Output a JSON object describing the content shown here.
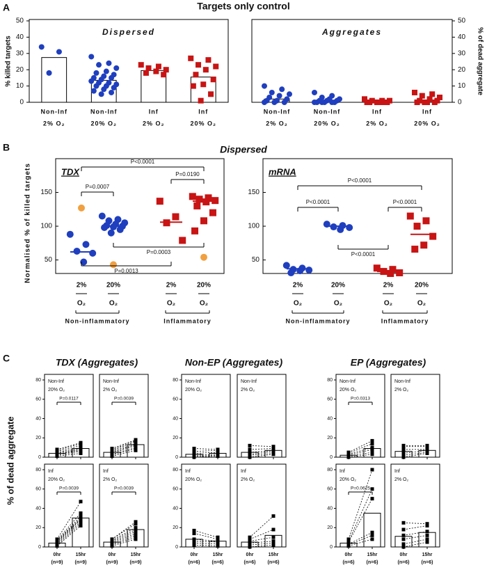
{
  "figure": {
    "panel_labels": [
      "A",
      "B",
      "C"
    ],
    "headings": {
      "a": "Targets only control",
      "b": "Dispersed",
      "c": [
        "TDX (Aggregates)",
        "Non-EP (Aggregates)",
        "EP (Aggregates)"
      ],
      "c_ylabel": "% of dead aggregate"
    }
  },
  "chart_data": [
    {
      "type": "bar_scatter",
      "title": "Dispersed",
      "ylabel": "% killed targets",
      "categories": [
        "Non-Inf",
        "Non-Inf",
        "Inf",
        "Inf"
      ],
      "sublabels": [
        "2% O₂",
        "20% O₂",
        "2% O₂",
        "20% O₂"
      ],
      "colors": [
        "#1f3fbf",
        "#1f3fbf",
        "#c81414",
        "#c81414"
      ],
      "markers": [
        "circle",
        "circle",
        "square",
        "square"
      ],
      "ylim": [
        0,
        50
      ],
      "yticks": [
        0,
        10,
        20,
        30,
        40,
        50
      ],
      "values": [
        27.5,
        13.5,
        19.5,
        15.5
      ],
      "points": [
        [
          34,
          31,
          18
        ],
        [
          28,
          24,
          23,
          21,
          19,
          18,
          17,
          16,
          15,
          15,
          14,
          13,
          12,
          12,
          11,
          10,
          10,
          9,
          8,
          7,
          6,
          5
        ],
        [
          23,
          22,
          21,
          20,
          19,
          18,
          17
        ],
        [
          27,
          26,
          23,
          22,
          20,
          17,
          14,
          11,
          10,
          5,
          1
        ]
      ]
    },
    {
      "type": "bar_scatter",
      "title": "Aggregates",
      "ylabel": "% of dead aggregate",
      "categories": [
        "Non-Inf",
        "Non-Inf",
        "Inf",
        "Inf"
      ],
      "sublabels": [
        "2% O₂",
        "20% O₂",
        "2% O₂",
        "20% O₂"
      ],
      "colors": [
        "#1f3fbf",
        "#1f3fbf",
        "#c81414",
        "#c81414"
      ],
      "markers": [
        "circle",
        "circle",
        "square",
        "square"
      ],
      "ylim": [
        0,
        50
      ],
      "yticks": [
        0,
        10,
        20,
        30,
        40,
        50
      ],
      "values": [
        2,
        1,
        0.5,
        1
      ],
      "points": [
        [
          10,
          8,
          6,
          5,
          4,
          3,
          2,
          1,
          1,
          0,
          0,
          0
        ],
        [
          6,
          4,
          3,
          2,
          2,
          1,
          1,
          1,
          0,
          0,
          0,
          0,
          0,
          0
        ],
        [
          2,
          1,
          1,
          1,
          0,
          0,
          0,
          0,
          0,
          0
        ],
        [
          6,
          5,
          4,
          3,
          2,
          1,
          1,
          0,
          0,
          0,
          0
        ]
      ]
    },
    {
      "type": "dot_median",
      "title": "TDX",
      "ylabel": "Normalised % of killed targets",
      "categories": [
        "2%",
        "20%",
        "2%",
        "20%"
      ],
      "sublabels": [
        "O₂",
        "O₂",
        "O₂",
        "O₂"
      ],
      "groups": [
        "Non-inflammatory",
        "Inflammatory"
      ],
      "colors": [
        "#1f3fbf",
        "#1f3fbf",
        "#c81414",
        "#c81414"
      ],
      "markers": [
        "circle",
        "circle",
        "square",
        "square"
      ],
      "outlier_color": "#f0a040",
      "ylim": [
        30,
        200
      ],
      "yticks": [
        50,
        100,
        150
      ],
      "points": [
        [
          88,
          73,
          63,
          60,
          47
        ],
        [
          115,
          110,
          108,
          105,
          103,
          101,
          100,
          99,
          98,
          95,
          90
        ],
        [
          137,
          114,
          105,
          79
        ],
        [
          144,
          142,
          140,
          138,
          136,
          130,
          120,
          108,
          93
        ]
      ],
      "outliers": [
        [
          127
        ],
        [
          43
        ],
        [],
        [
          54
        ]
      ],
      "medians": [
        62,
        100,
        106,
        137
      ],
      "brackets": [
        {
          "from": 0,
          "to": 1,
          "label": "P=0.0007"
        },
        {
          "from": 0,
          "to": 3,
          "label": "P<0.0001"
        },
        {
          "from": 2,
          "to": 3,
          "label": "P=0.0190"
        },
        {
          "from": 1,
          "to": 3,
          "label": "P=0.0003"
        },
        {
          "from": 0,
          "to": 2,
          "label": "P=0.0013"
        }
      ]
    },
    {
      "type": "dot_median",
      "title": "mRNA",
      "categories": [
        "2%",
        "20%",
        "2%",
        "20%"
      ],
      "sublabels": [
        "O₂",
        "O₂",
        "O₂",
        "O₂"
      ],
      "groups": [
        "Non-inflammatory",
        "Inflammatory"
      ],
      "colors": [
        "#1f3fbf",
        "#1f3fbf",
        "#c81414",
        "#c81414"
      ],
      "markers": [
        "circle",
        "circle",
        "square",
        "square"
      ],
      "ylim": [
        30,
        200
      ],
      "yticks": [
        50,
        100,
        150
      ],
      "points": [
        [
          42,
          38,
          36,
          35,
          34,
          31
        ],
        [
          103,
          101,
          99,
          98,
          95
        ],
        [
          38,
          36,
          33,
          31,
          30
        ],
        [
          115,
          108,
          100,
          85,
          72,
          66
        ]
      ],
      "medians": [
        37,
        100,
        33,
        88
      ],
      "brackets": [
        {
          "from": 0,
          "to": 1,
          "label": "P<0.0001"
        },
        {
          "from": 2,
          "to": 3,
          "label": "P<0.0001"
        },
        {
          "from": 0,
          "to": 3,
          "label": "P<0.0001"
        },
        {
          "from": 1,
          "to": 2,
          "label": "P<0.0001"
        }
      ]
    },
    {
      "type": "paired",
      "label": [
        "Non-Inf",
        "20% O₂"
      ],
      "ylim": [
        0,
        80
      ],
      "yticks": [
        0,
        20,
        40,
        60,
        80
      ],
      "pre": [
        1,
        2,
        3,
        3,
        4,
        5,
        6,
        7,
        8
      ],
      "post": [
        4,
        6,
        7,
        8,
        9,
        10,
        12,
        14,
        15
      ],
      "values": [
        4,
        9
      ],
      "p_label": "P=0.0117"
    },
    {
      "type": "paired",
      "label": [
        "Non-Inf",
        "2% O₂"
      ],
      "ylim": [
        0,
        80
      ],
      "pre": [
        1,
        2,
        3,
        4,
        5,
        6,
        7,
        8,
        9
      ],
      "post": [
        7,
        9,
        10,
        12,
        13,
        14,
        16,
        17,
        18
      ],
      "values": [
        5,
        13
      ],
      "p_label": "P=0.0039"
    },
    {
      "type": "paired",
      "label": [
        "Inf",
        "20% O₂"
      ],
      "ylim": [
        0,
        80
      ],
      "yticks": [
        0,
        20,
        40,
        60,
        80
      ],
      "pre": [
        1,
        2,
        3,
        4,
        5,
        6,
        6,
        7,
        8
      ],
      "post": [
        22,
        24,
        26,
        28,
        29,
        30,
        32,
        35,
        47
      ],
      "values": [
        4,
        30
      ],
      "p_label": "P=0.0039",
      "x_labels": [
        "0hr",
        "15hr"
      ],
      "n_labels": [
        "(n=9)",
        "(n=9)"
      ]
    },
    {
      "type": "paired",
      "label": [
        "Inf",
        "2% O₂"
      ],
      "ylim": [
        0,
        80
      ],
      "pre": [
        1,
        2,
        3,
        4,
        5,
        6,
        7,
        8,
        8
      ],
      "post": [
        8,
        10,
        12,
        14,
        16,
        18,
        20,
        24,
        26
      ],
      "values": [
        5,
        18
      ],
      "p_label": "P=0.0039",
      "x_labels": [
        "0hr",
        "15hr"
      ],
      "n_labels": [
        "(n=9)",
        "(n=9)"
      ]
    },
    {
      "type": "paired",
      "label": [
        "Non-Inf",
        "20% O₂"
      ],
      "ylim": [
        0,
        80
      ],
      "yticks": [
        0,
        20,
        40,
        60,
        80
      ],
      "pre": [
        0,
        1,
        2,
        4,
        6,
        9
      ],
      "post": [
        1,
        2,
        3,
        5,
        7,
        8
      ],
      "values": [
        3,
        4
      ]
    },
    {
      "type": "paired",
      "label": [
        "Non-Inf",
        "2% O₂"
      ],
      "ylim": [
        0,
        80
      ],
      "pre": [
        0,
        2,
        3,
        5,
        8,
        12
      ],
      "post": [
        3,
        4,
        6,
        7,
        9,
        11
      ],
      "values": [
        5,
        7
      ]
    },
    {
      "type": "paired",
      "label": [
        "Inf",
        "20% O₂"
      ],
      "ylim": [
        0,
        80
      ],
      "yticks": [
        0,
        20,
        40,
        60,
        80
      ],
      "pre": [
        2,
        4,
        6,
        8,
        14,
        17
      ],
      "post": [
        1,
        3,
        5,
        6,
        8,
        10
      ],
      "values": [
        8,
        6
      ],
      "x_labels": [
        "0hr",
        "15hr"
      ],
      "n_labels": [
        "(n=6)",
        "(n=6)"
      ]
    },
    {
      "type": "paired",
      "label": [
        "Inf",
        "2% O₂"
      ],
      "ylim": [
        0,
        80
      ],
      "pre": [
        0,
        2,
        4,
        6,
        8,
        10
      ],
      "post": [
        2,
        4,
        6,
        10,
        18,
        32
      ],
      "values": [
        5,
        12
      ],
      "x_labels": [
        "0hr",
        "15hr"
      ],
      "n_labels": [
        "(n=6)",
        "(n=6)"
      ]
    },
    {
      "type": "paired",
      "label": [
        "Non-Inf",
        "20% O₂"
      ],
      "ylim": [
        0,
        80
      ],
      "yticks": [
        0,
        20,
        40,
        60,
        80
      ],
      "pre": [
        0,
        1,
        2,
        3,
        4,
        5
      ],
      "post": [
        3,
        5,
        8,
        10,
        14,
        17
      ],
      "values": [
        2,
        9
      ],
      "p_label": "P=0.0313"
    },
    {
      "type": "paired",
      "label": [
        "Non-Inf",
        "2% O₂"
      ],
      "ylim": [
        0,
        80
      ],
      "pre": [
        0,
        2,
        4,
        8,
        11,
        12
      ],
      "post": [
        4,
        5,
        7,
        8,
        11,
        12
      ],
      "values": [
        6,
        7
      ]
    },
    {
      "type": "paired",
      "label": [
        "Inf",
        "20% O₂"
      ],
      "ylim": [
        0,
        80
      ],
      "yticks": [
        0,
        20,
        40,
        60,
        80
      ],
      "pre": [
        1,
        2,
        3,
        5,
        6,
        8
      ],
      "post": [
        8,
        12,
        15,
        50,
        60,
        80
      ],
      "values": [
        4,
        35
      ],
      "p_label": "P=0.0625",
      "x_labels": [
        "0hr",
        "15hr"
      ],
      "n_labels": [
        "(n=6)",
        "(n=6)"
      ]
    },
    {
      "type": "paired",
      "label": [
        "Inf",
        "2% O₂"
      ],
      "ylim": [
        0,
        80
      ],
      "pre": [
        0,
        3,
        8,
        12,
        18,
        25
      ],
      "post": [
        5,
        8,
        12,
        16,
        22,
        24
      ],
      "values": [
        11,
        15
      ],
      "x_labels": [
        "0hr",
        "15hr"
      ],
      "n_labels": [
        "(n=6)",
        "(n=6)"
      ]
    }
  ]
}
